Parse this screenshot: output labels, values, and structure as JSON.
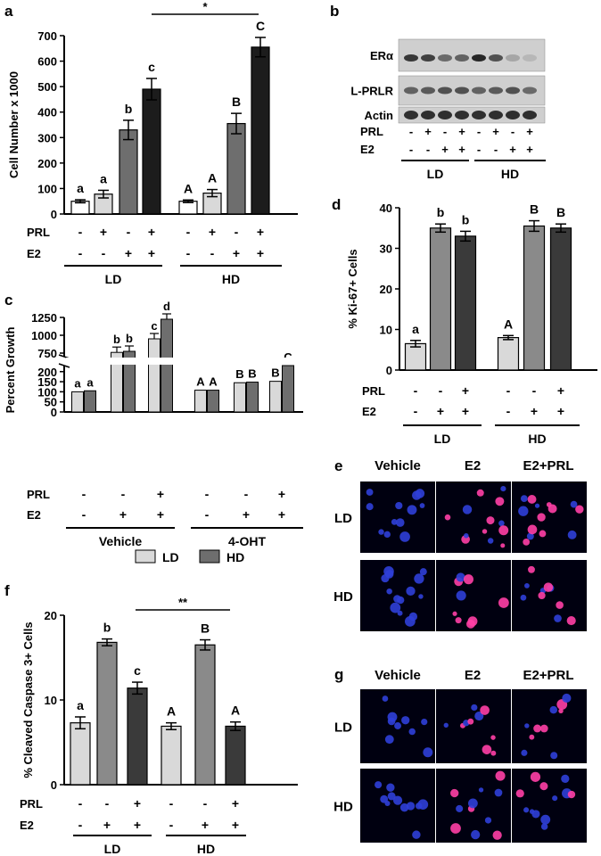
{
  "panel_labels": {
    "a": "a",
    "b": "b",
    "c": "c",
    "d": "d",
    "e": "e",
    "f": "f",
    "g": "g"
  },
  "colors": {
    "white_bar": "#ffffff",
    "light_bar": "#d9d9d9",
    "mid_bar": "#6e6e6e",
    "dark_bar": "#1c1c1c",
    "d_light": "#d9d9d9",
    "d_mid": "#8a8a8a",
    "d_dark": "#3a3a3a",
    "f_light": "#d9d9d9",
    "f_mid": "#8a8a8a",
    "f_dark": "#3a3a3a",
    "nucleus_blue": "#2f3fd8",
    "nucleus_pink": "#ff3fa6"
  },
  "row_labels": {
    "prl": "PRL",
    "e2": "E2"
  },
  "chart_data": [
    {
      "panel": "a",
      "type": "bar",
      "ylabel": "Cell Number x 1000",
      "ylim": [
        0,
        700
      ],
      "yticks": [
        0,
        100,
        200,
        300,
        400,
        500,
        600,
        700
      ],
      "categories": [
        "LD -/-",
        "LD PRL",
        "LD E2",
        "LD E2+PRL",
        "HD -/-",
        "HD PRL",
        "HD E2",
        "HD E2+PRL"
      ],
      "values": [
        50,
        78,
        330,
        490,
        50,
        82,
        355,
        655
      ],
      "errors": [
        6,
        15,
        38,
        42,
        5,
        14,
        40,
        38
      ],
      "letters": [
        "a",
        "a",
        "b",
        "c",
        "A",
        "A",
        "B",
        "C"
      ],
      "prl": [
        "-",
        "+",
        "-",
        "+",
        "-",
        "+",
        "-",
        "+"
      ],
      "e2": [
        "-",
        "-",
        "+",
        "+",
        "-",
        "-",
        "+",
        "+"
      ],
      "groups": [
        "LD",
        "HD"
      ],
      "significance": "*"
    },
    {
      "panel": "c",
      "type": "bar",
      "axis_break": true,
      "ylabel": "Percent Growth",
      "yticks_lower": [
        0,
        50,
        100,
        150,
        200
      ],
      "yticks_upper": [
        750,
        1000,
        1250
      ],
      "conditions": [
        "Vehicle -/-",
        "Vehicle E2",
        "Vehicle E2+PRL",
        "4-OHT -/-",
        "4-OHT E2",
        "4-OHT E2+PRL"
      ],
      "series": [
        {
          "name": "LD",
          "values": [
            100,
            760,
            950,
            108,
            145,
            152
          ],
          "letters": [
            "a",
            "b",
            "c",
            "A",
            "B",
            "B"
          ]
        },
        {
          "name": "HD",
          "values": [
            105,
            775,
            1225,
            108,
            148,
            230
          ],
          "letters": [
            "a",
            "b",
            "d",
            "A",
            "B",
            "C"
          ]
        }
      ],
      "prl": [
        "-",
        "-",
        "+",
        "-",
        "-",
        "+"
      ],
      "e2": [
        "-",
        "+",
        "+",
        "-",
        "+",
        "+"
      ],
      "groups": [
        "Vehicle",
        "4-OHT"
      ],
      "legend": "bottom"
    },
    {
      "panel": "d",
      "type": "bar",
      "ylabel": "% Ki-67+ Cells",
      "ylim": [
        0,
        40
      ],
      "yticks": [
        0,
        10,
        20,
        30,
        40
      ],
      "categories": [
        "LD -/-",
        "LD E2",
        "LD E2+PRL",
        "HD -/-",
        "HD E2",
        "HD E2+PRL"
      ],
      "values": [
        6.5,
        35,
        33,
        8,
        35.5,
        35
      ],
      "errors": [
        0.8,
        1.0,
        1.2,
        0.5,
        1.3,
        1.0
      ],
      "letters": [
        "a",
        "b",
        "b",
        "A",
        "B",
        "B"
      ],
      "prl": [
        "-",
        "-",
        "+",
        "-",
        "-",
        "+"
      ],
      "e2": [
        "-",
        "+",
        "+",
        "-",
        "+",
        "+"
      ],
      "groups": [
        "LD",
        "HD"
      ]
    },
    {
      "panel": "f",
      "type": "bar",
      "ylabel": "% Cleaved Caspase 3+ Cells",
      "ylim": [
        0,
        20
      ],
      "yticks": [
        0,
        10,
        20
      ],
      "categories": [
        "LD -/-",
        "LD E2",
        "LD E2+PRL",
        "HD -/-",
        "HD E2",
        "HD E2+PRL"
      ],
      "values": [
        7.3,
        16.8,
        11.4,
        6.9,
        16.5,
        6.9
      ],
      "errors": [
        0.7,
        0.4,
        0.7,
        0.4,
        0.6,
        0.5
      ],
      "letters": [
        "a",
        "b",
        "c",
        "A",
        "B",
        "A"
      ],
      "prl": [
        "-",
        "-",
        "+",
        "-",
        "-",
        "+"
      ],
      "e2": [
        "-",
        "+",
        "+",
        "-",
        "+",
        "+"
      ],
      "groups": [
        "LD",
        "HD"
      ],
      "significance": "**"
    }
  ],
  "blot": {
    "bands": [
      "ERα",
      "L-PRLR",
      "Actin"
    ],
    "prl": [
      "-",
      "+",
      "-",
      "+",
      "-",
      "+",
      "-",
      "+"
    ],
    "e2": [
      "-",
      "-",
      "+",
      "+",
      "-",
      "-",
      "+",
      "+"
    ],
    "groups": [
      "LD",
      "HD"
    ],
    "intensity": {
      "era": [
        0.85,
        0.8,
        0.55,
        0.6,
        0.95,
        0.7,
        0.2,
        0.1
      ],
      "lprlr": [
        0.6,
        0.65,
        0.7,
        0.7,
        0.6,
        0.65,
        0.7,
        0.55
      ],
      "actin": [
        0.9,
        0.9,
        0.9,
        0.9,
        0.9,
        0.9,
        0.9,
        0.9
      ]
    }
  },
  "micrographs": {
    "e": {
      "cols": [
        "Vehicle",
        "E2",
        "E2+PRL"
      ],
      "rows": [
        "LD",
        "HD"
      ]
    },
    "g": {
      "cols": [
        "Vehicle",
        "E2",
        "E2+PRL"
      ],
      "rows": [
        "LD",
        "HD"
      ]
    }
  }
}
